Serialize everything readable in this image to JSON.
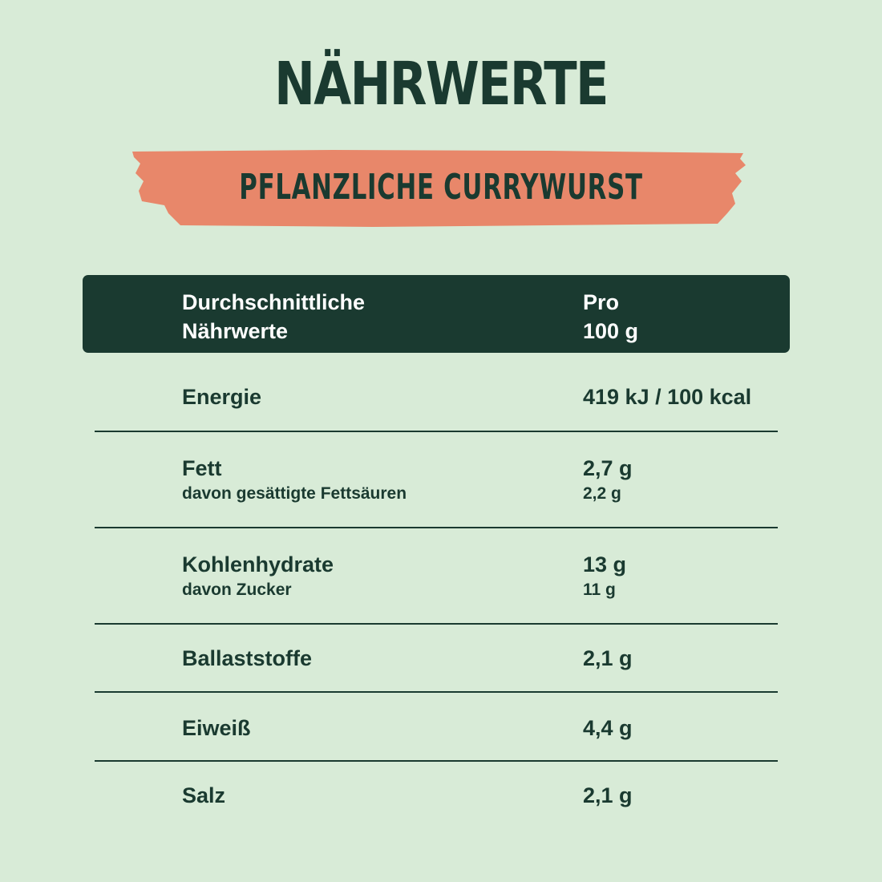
{
  "title": "NÄHRWERTE",
  "subtitle": "PFLANZLICHE CURRYWURST",
  "colors": {
    "background": "#d8ebd7",
    "dark_green": "#1a3a30",
    "salmon": "#e8876a"
  },
  "table": {
    "header": {
      "label_line1": "Durchschnittliche",
      "label_line2": "Nährwerte",
      "value_line1": "Pro",
      "value_line2": "100 g"
    },
    "rows": [
      {
        "label": "Energie",
        "value": "419 kJ / 100 kcal"
      },
      {
        "label": "Fett",
        "value": "2,7 g",
        "sub_label": "davon gesättigte Fettsäuren",
        "sub_value": "2,2 g"
      },
      {
        "label": "Kohlenhydrate",
        "value": "13 g",
        "sub_label": "davon Zucker",
        "sub_value": "11 g"
      },
      {
        "label": "Ballaststoffe",
        "value": "2,1 g"
      },
      {
        "label": "Eiweiß",
        "value": "4,4 g"
      },
      {
        "label": "Salz",
        "value": "2,1 g"
      }
    ]
  }
}
